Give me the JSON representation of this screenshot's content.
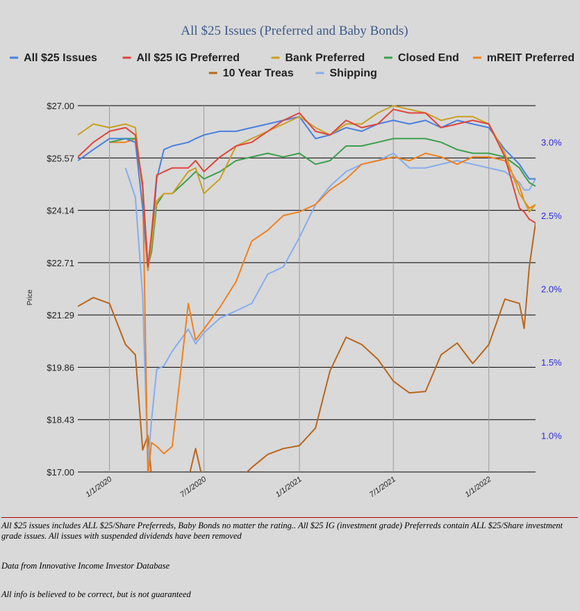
{
  "colors": {
    "All $25 Issues": "#4a7fe0",
    "All $25 IG Preferred": "#e0443a",
    "Bank Preferred": "#c9a020",
    "Closed End": "#3aa04c",
    "mREIT Preferred": "#f0801e",
    "10 Year Treas": "#b8661c",
    "Shipping": "#85adee"
  },
  "chart_data": {
    "type": "line",
    "title": "All $25 Issues (Preferred and Baby Bonds)",
    "ylabel": "Price",
    "ylim": [
      17.0,
      27.0
    ],
    "y_ticks": [
      "$17.00",
      "$18.43",
      "$19.86",
      "$21.29",
      "$22.71",
      "$24.14",
      "$25.57",
      "$27.00"
    ],
    "y2lim": [
      0.75,
      3.25
    ],
    "y2_ticks": [
      "1.0%",
      "1.5%",
      "2.0%",
      "2.5%",
      "3.0%"
    ],
    "x_range": [
      "2019-11-01",
      "2022-04-01"
    ],
    "x_ticks": [
      "1/1/2020",
      "7/1/2020",
      "1/1/2021",
      "7/1/2021",
      "1/1/2022"
    ],
    "grid": "horizontal",
    "legend": "top",
    "x": [
      "2019-11-01",
      "2019-12-01",
      "2020-01-01",
      "2020-02-01",
      "2020-02-20",
      "2020-03-05",
      "2020-03-15",
      "2020-03-22",
      "2020-04-01",
      "2020-04-15",
      "2020-05-01",
      "2020-06-01",
      "2020-06-15",
      "2020-07-01",
      "2020-08-01",
      "2020-09-01",
      "2020-10-01",
      "2020-11-01",
      "2020-12-01",
      "2021-01-01",
      "2021-02-01",
      "2021-03-01",
      "2021-04-01",
      "2021-05-01",
      "2021-06-01",
      "2021-07-01",
      "2021-08-01",
      "2021-09-01",
      "2021-10-01",
      "2021-11-01",
      "2021-12-01",
      "2022-01-01",
      "2022-02-01",
      "2022-03-01",
      "2022-03-10",
      "2022-03-20",
      "2022-04-01"
    ],
    "series": [
      {
        "name": "All $25 Issues",
        "values": [
          25.5,
          25.8,
          26.1,
          26.1,
          26.0,
          24.2,
          22.5,
          23.2,
          25.0,
          25.8,
          25.9,
          26.0,
          26.1,
          26.2,
          26.3,
          26.3,
          26.4,
          26.5,
          26.6,
          26.7,
          26.1,
          26.2,
          26.4,
          26.3,
          26.5,
          26.6,
          26.5,
          26.6,
          26.4,
          26.6,
          26.5,
          26.4,
          25.8,
          25.4,
          25.2,
          25.0,
          25.0
        ]
      },
      {
        "name": "All $25 IG Preferred",
        "values": [
          25.6,
          26.0,
          26.3,
          26.4,
          26.2,
          24.8,
          22.6,
          23.5,
          25.1,
          25.2,
          25.3,
          25.3,
          25.5,
          25.2,
          25.6,
          25.9,
          26.0,
          26.3,
          26.6,
          26.8,
          26.3,
          26.2,
          26.6,
          26.4,
          26.5,
          26.9,
          26.8,
          26.8,
          26.4,
          26.5,
          26.6,
          26.5,
          25.6,
          24.2,
          24.1,
          23.9,
          23.8
        ]
      },
      {
        "name": "Bank Preferred",
        "values": [
          26.2,
          26.5,
          26.4,
          26.5,
          26.4,
          24.7,
          22.5,
          23.2,
          24.4,
          24.6,
          24.6,
          25.2,
          25.3,
          24.6,
          25.0,
          25.9,
          26.1,
          26.3,
          26.5,
          26.7,
          26.4,
          26.2,
          26.5,
          26.5,
          26.8,
          27.0,
          26.9,
          26.8,
          26.6,
          26.7,
          26.7,
          26.5,
          25.7,
          24.6,
          24.4,
          24.1,
          24.3
        ]
      },
      {
        "name": "Closed End",
        "values": [
          null,
          null,
          26.0,
          26.1,
          26.1,
          24.8,
          22.6,
          23.0,
          24.3,
          24.6,
          24.6,
          25.0,
          25.2,
          25.0,
          25.2,
          25.5,
          25.6,
          25.7,
          25.6,
          25.7,
          25.4,
          25.5,
          25.9,
          25.9,
          26.0,
          26.1,
          26.1,
          26.1,
          26.0,
          25.8,
          25.7,
          25.7,
          25.6,
          25.3,
          25.1,
          24.9,
          24.8
        ]
      },
      {
        "name": "mREIT Preferred",
        "values": [
          null,
          null,
          26.0,
          26.0,
          26.1,
          24.9,
          16.9,
          17.8,
          17.7,
          17.5,
          17.7,
          21.6,
          20.6,
          20.9,
          21.5,
          22.2,
          23.3,
          23.6,
          24.0,
          24.1,
          24.3,
          24.7,
          25.0,
          25.4,
          25.5,
          25.6,
          25.5,
          25.7,
          25.6,
          25.4,
          25.6,
          25.6,
          25.5,
          24.8,
          24.4,
          24.2,
          24.3
        ]
      },
      {
        "name": "10 Year Treas",
        "values": [
          1.88,
          1.94,
          1.9,
          1.62,
          1.55,
          0.9,
          1.0,
          0.72,
          0.62,
          0.67,
          0.66,
          0.7,
          0.91,
          0.66,
          0.55,
          0.68,
          0.78,
          0.87,
          0.91,
          0.93,
          1.05,
          1.44,
          1.67,
          1.62,
          1.52,
          1.37,
          1.29,
          1.3,
          1.55,
          1.63,
          1.49,
          1.62,
          1.93,
          1.9,
          1.73,
          2.15,
          2.45
        ]
      },
      {
        "name": "Shipping",
        "values": [
          null,
          null,
          null,
          25.3,
          24.5,
          21.8,
          17.2,
          18.4,
          19.8,
          19.9,
          20.3,
          20.9,
          20.5,
          20.8,
          21.2,
          21.4,
          21.6,
          22.4,
          22.6,
          23.4,
          24.3,
          24.8,
          25.2,
          25.4,
          25.5,
          25.7,
          25.3,
          25.3,
          25.4,
          25.5,
          25.4,
          25.3,
          25.2,
          24.9,
          24.7,
          24.7,
          25.0
        ]
      }
    ]
  },
  "notes": {
    "line1": "All $25 issues includes ALL $25/Share Preferreds, Baby Bonds no matter the rating..  All $25 IG (investment grade) Preferreds contain ALL $25/Share investment grade issues.  All issues with suspended dividends have been removed",
    "line2": "Data from Innovative Income Investor Database",
    "line3": "All info is believed to be correct, but is not guaranteed"
  }
}
